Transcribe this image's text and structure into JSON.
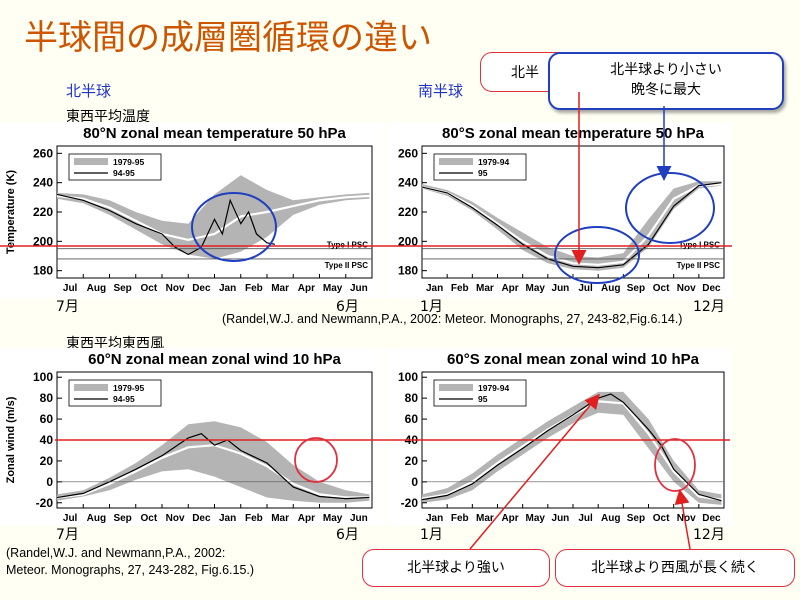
{
  "page_title": "半球間の成層圏循環の違い",
  "nh_label": "北半球",
  "sh_label": "南半球",
  "temp_label": "東西平均温度",
  "wind_label": "東西平均東西風",
  "nh_start_month": "7月",
  "nh_end_month": "6月",
  "sh_start_month": "1月",
  "sh_end_month": "12月",
  "citation_1": "(Randel,W.J. and Newmann,P.A., 2002: Meteor. Monographs, 27, 243-82,Fig.6.14.)",
  "citation_2_line1": "(Randel,W.J. and Newmann,P.A., 2002:",
  "citation_2_line2": " Meteor. Monographs, 27, 243-282, Fig.6.15.)",
  "callouts": {
    "top_hidden": "北半",
    "top_blue_line1": "北半球より小さい",
    "top_blue_line2": "晩冬に最大",
    "bottom_left": "北半球より強い",
    "bottom_right": "北半球より西風が長く続く"
  },
  "colors": {
    "title": "#cc5500",
    "hemisphere_label": "#1e32c8",
    "reference_line": "#e02020",
    "highlight_ellipse_blue": "#1f3fbf",
    "highlight_ellipse_red": "#e03040",
    "envelope": "#b4b4b4",
    "mean": "#ffffff",
    "observed": "#000000"
  },
  "chart_data": [
    {
      "id": "nh_temp",
      "type": "line",
      "title": "80°N zonal mean temperature 50 hPa",
      "ylabel": "Temperature (K)",
      "xlabel": "",
      "x_ticks": [
        "Jul",
        "Aug",
        "Sep",
        "Oct",
        "Nov",
        "Dec",
        "Jan",
        "Feb",
        "Mar",
        "Apr",
        "May",
        "Jun"
      ],
      "ylim": [
        175,
        265
      ],
      "y_ticks": [
        180,
        200,
        220,
        240,
        260
      ],
      "legend": [
        "1979-95",
        "94-95"
      ],
      "legend_position": "top-left",
      "reference_line_y": 200,
      "psc_lines": [
        {
          "label": "Type I PSC",
          "y": 195
        },
        {
          "label": "Type II PSC",
          "y": 188
        }
      ],
      "series": [
        {
          "name": "1979-95",
          "style": "envelope",
          "x": [
            0,
            1,
            2,
            3,
            4,
            5,
            6,
            7,
            8,
            9,
            10,
            11,
            11.9
          ],
          "upper": [
            233,
            232,
            228,
            220,
            214,
            212,
            232,
            245,
            235,
            228,
            230,
            232,
            233
          ],
          "lower": [
            229,
            226,
            218,
            208,
            198,
            191,
            188,
            193,
            203,
            218,
            225,
            228,
            229
          ]
        },
        {
          "name": "1979-95 mean",
          "style": "mean",
          "x": [
            0,
            1,
            2,
            3,
            4,
            5,
            6,
            7,
            8,
            9,
            10,
            11,
            11.9
          ],
          "values": [
            231,
            229,
            223,
            214,
            205,
            201,
            205,
            217,
            220,
            224,
            228,
            230,
            231
          ]
        },
        {
          "name": "94-95",
          "style": "line",
          "x": [
            0,
            1,
            2,
            3,
            4,
            4.5,
            5,
            5.5,
            6,
            6.3,
            6.6,
            7,
            7.3,
            7.6,
            8,
            8.3
          ],
          "values": [
            232,
            228,
            221,
            212,
            205,
            196,
            191,
            196,
            215,
            205,
            228,
            212,
            220,
            205,
            199,
            198
          ]
        }
      ]
    },
    {
      "id": "sh_temp",
      "type": "line",
      "title": "80°S zonal mean temperature 50 hPa",
      "ylabel": "",
      "xlabel": "",
      "x_ticks": [
        "Jan",
        "Feb",
        "Mar",
        "Apr",
        "May",
        "Jun",
        "Jul",
        "Aug",
        "Sep",
        "Oct",
        "Nov",
        "Dec"
      ],
      "ylim": [
        175,
        265
      ],
      "y_ticks": [
        180,
        200,
        220,
        240,
        260
      ],
      "legend": [
        "1979-94",
        "95"
      ],
      "legend_position": "top-left",
      "reference_line_y": 200,
      "psc_lines": [
        {
          "label": "Type I PSC",
          "y": 195
        },
        {
          "label": "Type II PSC",
          "y": 188
        }
      ],
      "series": [
        {
          "name": "1979-94",
          "style": "envelope",
          "x": [
            0,
            1,
            2,
            3,
            4,
            5,
            6,
            7,
            8,
            9,
            10,
            11,
            11.9
          ],
          "upper": [
            239,
            235,
            227,
            216,
            206,
            196,
            190,
            189,
            192,
            215,
            236,
            241,
            241
          ],
          "lower": [
            236,
            231,
            221,
            208,
            194,
            185,
            181,
            180,
            182,
            196,
            222,
            236,
            238
          ]
        },
        {
          "name": "1979-94 mean",
          "style": "mean",
          "x": [
            0,
            1,
            2,
            3,
            4,
            5,
            6,
            7,
            8,
            9,
            10,
            11,
            11.9
          ],
          "values": [
            237,
            233,
            224,
            212,
            200,
            190,
            185,
            184,
            186,
            204,
            229,
            238,
            239
          ]
        },
        {
          "name": "95",
          "style": "line",
          "x": [
            0,
            1,
            2,
            3,
            4,
            5,
            6,
            7,
            8,
            9,
            10,
            11,
            11.9
          ],
          "values": [
            237,
            233,
            223,
            211,
            198,
            188,
            183,
            182,
            184,
            198,
            224,
            238,
            240
          ]
        }
      ]
    },
    {
      "id": "nh_wind",
      "type": "line",
      "title": "60°N zonal mean zonal wind 10 hPa",
      "ylabel": "Zonal wind (m/s)",
      "xlabel": "",
      "x_ticks": [
        "Jul",
        "Aug",
        "Sep",
        "Oct",
        "Nov",
        "Dec",
        "Jan",
        "Feb",
        "Mar",
        "Apr",
        "May",
        "Jun"
      ],
      "ylim": [
        -25,
        105
      ],
      "y_ticks": [
        -20,
        0,
        20,
        40,
        60,
        80,
        100
      ],
      "legend": [
        "1979-95",
        "94-95"
      ],
      "legend_position": "top-left",
      "reference_line_y": 40,
      "series": [
        {
          "name": "1979-95",
          "style": "envelope",
          "x": [
            0,
            1,
            2,
            3,
            4,
            5,
            6,
            7,
            8,
            9,
            10,
            11,
            11.9
          ],
          "upper": [
            -12,
            -8,
            4,
            18,
            35,
            55,
            58,
            52,
            38,
            16,
            0,
            -8,
            -12
          ],
          "lower": [
            -18,
            -14,
            -8,
            2,
            10,
            12,
            5,
            -5,
            -15,
            -18,
            -20,
            -20,
            -18
          ]
        },
        {
          "name": "1979-95 mean",
          "style": "mean",
          "x": [
            0,
            1,
            2,
            3,
            4,
            5,
            6,
            7,
            8,
            9,
            10,
            11,
            11.9
          ],
          "values": [
            -15,
            -12,
            -2,
            10,
            23,
            33,
            35,
            27,
            15,
            -2,
            -12,
            -15,
            -15
          ]
        },
        {
          "name": "94-95",
          "style": "line",
          "x": [
            0,
            1,
            2,
            3,
            4,
            5,
            5.5,
            6,
            6.5,
            7,
            8,
            9,
            10,
            11,
            11.9
          ],
          "values": [
            -15,
            -11,
            0,
            12,
            25,
            42,
            46,
            35,
            40,
            30,
            18,
            -5,
            -14,
            -16,
            -15
          ]
        }
      ]
    },
    {
      "id": "sh_wind",
      "type": "line",
      "title": "60°S zonal mean zonal wind 10 hPa",
      "ylabel": "",
      "xlabel": "",
      "x_ticks": [
        "Jan",
        "Feb",
        "Mar",
        "Apr",
        "May",
        "Jun",
        "Jul",
        "Aug",
        "Sep",
        "Oct",
        "Nov",
        "Dec"
      ],
      "ylim": [
        -25,
        105
      ],
      "y_ticks": [
        -20,
        0,
        20,
        40,
        60,
        80,
        100
      ],
      "legend": [
        "1979-94",
        "95"
      ],
      "legend_position": "top-left",
      "reference_line_y": 40,
      "series": [
        {
          "name": "1979-94",
          "style": "envelope",
          "x": [
            0,
            1,
            2,
            3,
            4,
            5,
            6,
            7,
            8,
            9,
            10,
            11,
            11.9
          ],
          "upper": [
            -12,
            -6,
            8,
            26,
            42,
            58,
            72,
            86,
            86,
            60,
            20,
            -8,
            -12
          ],
          "lower": [
            -20,
            -17,
            -8,
            10,
            26,
            42,
            56,
            66,
            64,
            32,
            0,
            -20,
            -22
          ]
        },
        {
          "name": "1979-94 mean",
          "style": "mean",
          "x": [
            0,
            1,
            2,
            3,
            4,
            5,
            6,
            7,
            8,
            9,
            10,
            11,
            11.9
          ],
          "values": [
            -16,
            -12,
            0,
            18,
            34,
            50,
            64,
            77,
            75,
            46,
            10,
            -14,
            -17
          ]
        },
        {
          "name": "95",
          "style": "line",
          "x": [
            0,
            1,
            2,
            3,
            4,
            5,
            6,
            7,
            7.5,
            8,
            9,
            9.5,
            10,
            11,
            11.9
          ],
          "values": [
            -17,
            -13,
            -2,
            16,
            32,
            49,
            64,
            80,
            84,
            76,
            50,
            35,
            12,
            -12,
            -18
          ]
        }
      ]
    }
  ]
}
